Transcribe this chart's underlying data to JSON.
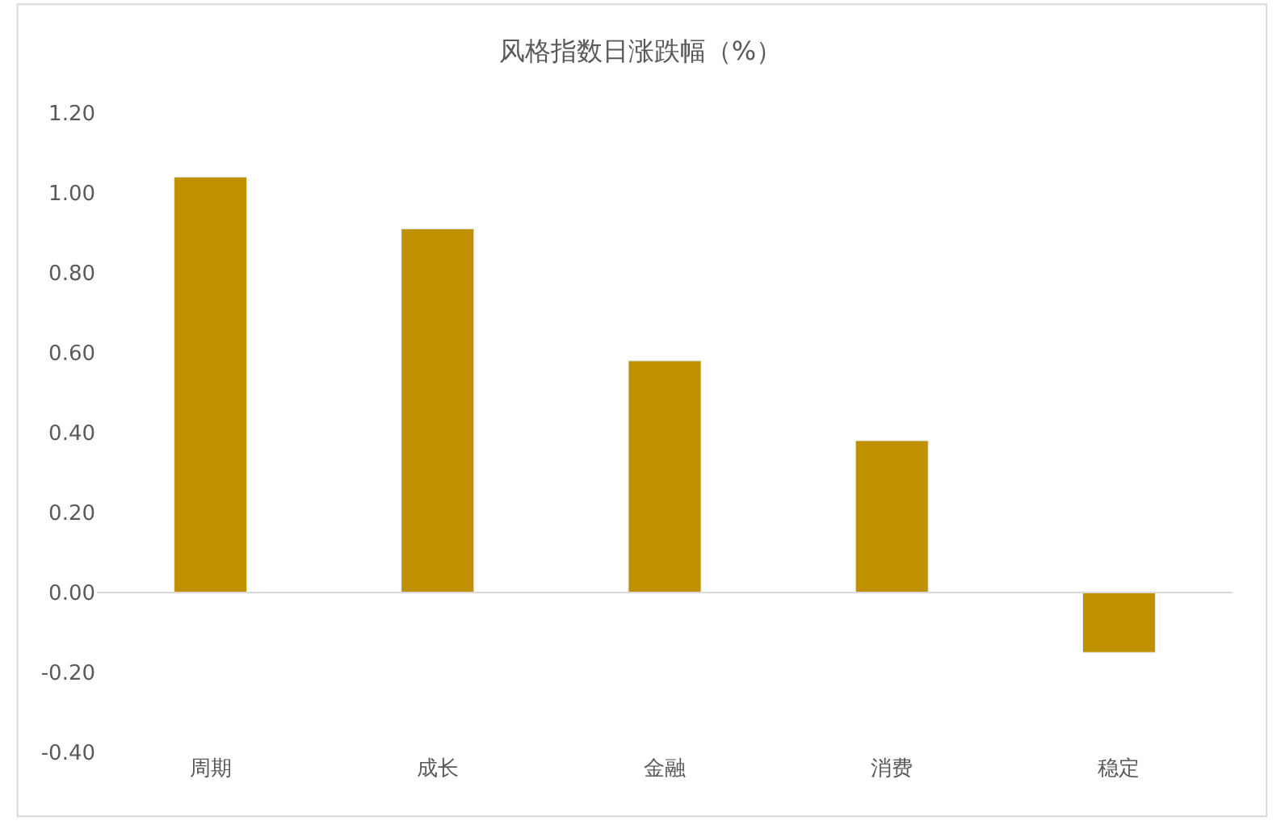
{
  "chart_data": {
    "type": "bar",
    "title": "风格指数日涨跌幅（%）",
    "categories": [
      "周期",
      "成长",
      "金融",
      "消费",
      "稳定"
    ],
    "values": [
      1.04,
      0.91,
      0.58,
      0.38,
      -0.15
    ],
    "color": "#bf9000",
    "ylim": [
      -0.4,
      1.2
    ],
    "yticks": [
      {
        "value": -0.4,
        "label": "-0.40"
      },
      {
        "value": -0.2,
        "label": "-0.20"
      },
      {
        "value": 0,
        "label": "0.00"
      },
      {
        "value": 0.2,
        "label": "0.20"
      },
      {
        "value": 0.4,
        "label": "0.40"
      },
      {
        "value": 0.6,
        "label": "0.60"
      },
      {
        "value": 0.8,
        "label": "0.80"
      },
      {
        "value": 1.0,
        "label": "1.00"
      },
      {
        "value": 1.2,
        "label": "1.20"
      }
    ]
  }
}
